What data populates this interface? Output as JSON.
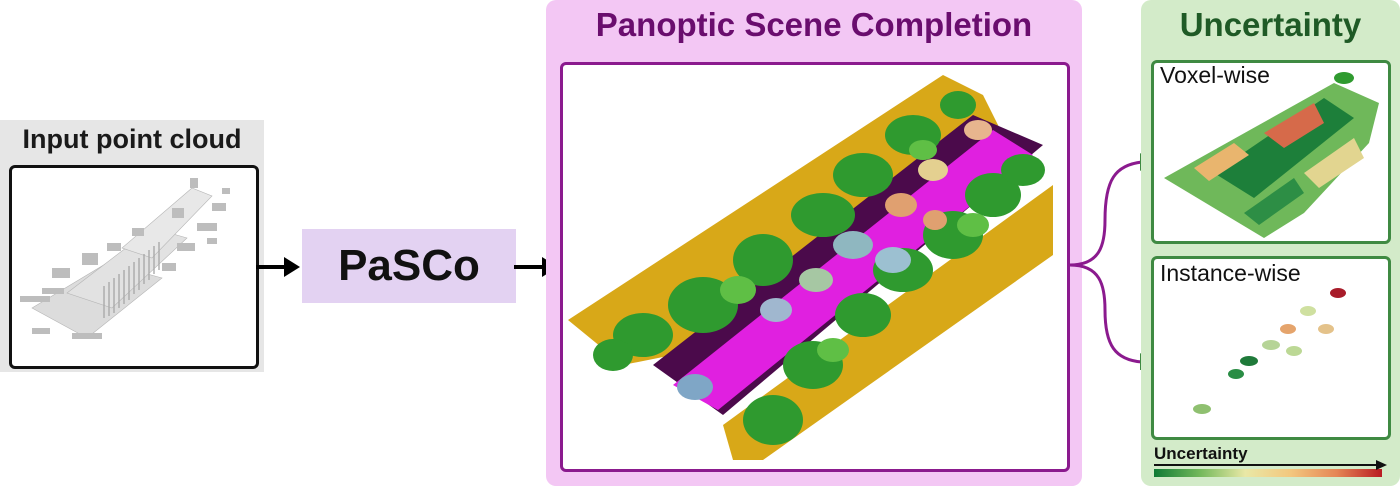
{
  "input": {
    "title": "Input point cloud"
  },
  "model": {
    "label": "PaSCo"
  },
  "panoptic": {
    "title": "Panoptic Scene Completion"
  },
  "uncertainty": {
    "title": "Uncertainty",
    "voxel_label": "Voxel-wise",
    "instance_label": "Instance-wise",
    "scale_label": "Uncertainty"
  },
  "colors": {
    "panoptic_title": "#6a0d6e",
    "uncertainty_title": "#1f5a26",
    "road": "#e020e0",
    "sidewalk": "#4b0a4b",
    "vegetation": "#2f9a2f",
    "terrain": "#d8a818",
    "car": "#8fb7c0",
    "low_uncertainty": "#0f7a35",
    "high_uncertainty": "#b91b23"
  }
}
